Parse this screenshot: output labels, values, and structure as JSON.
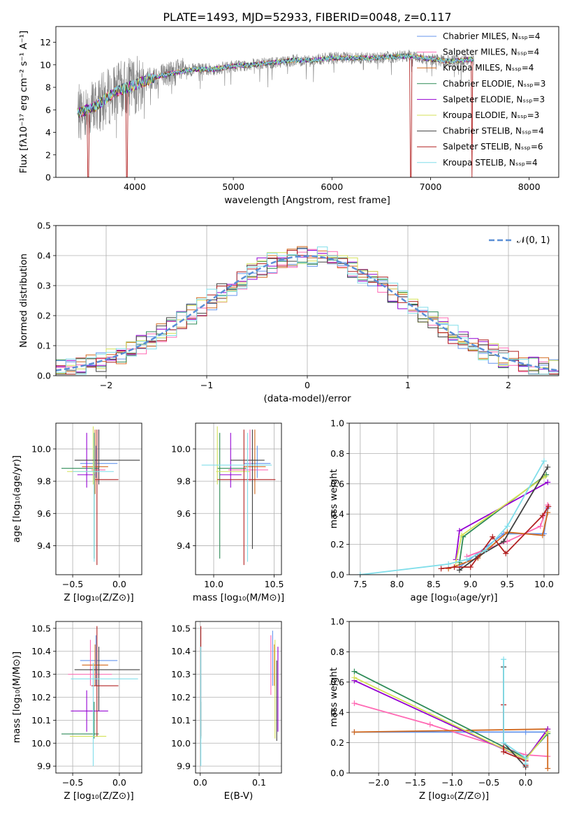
{
  "title": "PLATE=1493, MJD=52933, FIBERID=0048, z=0.117",
  "colors": {
    "ssp": [
      "#6495ed",
      "#ff69b4",
      "#d2691e",
      "#2e8b57",
      "#9400d3",
      "#d4e157",
      "#404040",
      "#b22222",
      "#80deea"
    ],
    "spectrum": "#808080",
    "gauss": "#5b8fd6",
    "grid": "#b0b0b0"
  },
  "chart_data": [
    {
      "id": "spectrum",
      "type": "line",
      "xlabel": "wavelength [Angstrom, rest frame]",
      "ylabel": "Flux [fλ10⁻¹⁷ erg cm⁻² s⁻¹ A⁻¹]",
      "xlim": [
        3200,
        8300
      ],
      "ylim": [
        0,
        13.4
      ],
      "xticks": [
        4000,
        5000,
        6000,
        7000,
        8000
      ],
      "yticks": [
        0,
        2,
        4,
        6,
        8,
        10,
        12
      ],
      "grid": false,
      "legend_position": "top-right",
      "legend": [
        "Chabrier MILES, Nₛₛₚ=4",
        "Salpeter MILES, Nₛₛₚ=4",
        "Kroupa MILES, Nₛₛₚ=4",
        "Chabrier ELODIE, Nₛₛₚ=3",
        "Salpeter ELODIE, Nₛₛₚ=3",
        "Kroupa ELODIE, Nₛₛₚ=3",
        "Chabrier STELIB, Nₛₛₚ=4",
        "Salpeter STELIB, Nₛₛₚ=6",
        "Kroupa STELIB, Nₛₛₚ=4"
      ],
      "continuum": [
        [
          3400,
          5.6
        ],
        [
          3600,
          6.3
        ],
        [
          3800,
          7.6
        ],
        [
          4000,
          8.2
        ],
        [
          4200,
          8.9
        ],
        [
          4400,
          9.3
        ],
        [
          4600,
          9.6
        ],
        [
          4800,
          9.6
        ],
        [
          5000,
          9.9
        ],
        [
          5200,
          10.0
        ],
        [
          5400,
          10.2
        ],
        [
          5600,
          10.4
        ],
        [
          5800,
          10.4
        ],
        [
          6000,
          10.6
        ],
        [
          6200,
          10.6
        ],
        [
          6400,
          10.6
        ],
        [
          6600,
          10.7
        ],
        [
          6800,
          10.8
        ],
        [
          7000,
          10.5
        ],
        [
          7200,
          10.3
        ],
        [
          7400,
          10.5
        ]
      ],
      "data_range": [
        3420,
        7440
      ],
      "model_drops": [
        3530,
        3920,
        6800,
        7420
      ]
    },
    {
      "id": "residual-hist",
      "type": "line",
      "xlabel": "(data-model)/error",
      "ylabel": "Normed distribution",
      "xlim": [
        -2.5,
        2.5
      ],
      "ylim": [
        0,
        0.5
      ],
      "xticks": [
        -2,
        -1,
        0,
        1,
        2
      ],
      "xtick_labels": [
        "−2",
        "−1",
        "0",
        "1",
        "2"
      ],
      "yticks": [
        0,
        0.1,
        0.2,
        0.3,
        0.4,
        0.5
      ],
      "ytick_labels": [
        "0.0",
        "0.1",
        "0.2",
        "0.3",
        "0.4",
        "0.5"
      ],
      "grid": true,
      "legend_position": "top-right",
      "legend": [
        "𝒩(0, 1)"
      ],
      "gauss": {
        "mu": 0,
        "sigma": 1
      }
    },
    {
      "id": "age-vs-z",
      "type": "scatter",
      "xlabel": "Z [log₁₀(Z/Z⊙)]",
      "ylabel": "age  [log₁₀(age/yr)]",
      "xlim": [
        -0.68,
        0.24
      ],
      "ylim": [
        9.22,
        10.16
      ],
      "xticks": [
        -0.5,
        0.0
      ],
      "xtick_labels": [
        "−0.5",
        "0.0"
      ],
      "yticks": [
        9.4,
        9.6,
        9.8,
        10.0
      ],
      "ytick_labels": [
        "9.4",
        "9.6",
        "9.8",
        "10.0"
      ],
      "grid": true,
      "points": [
        {
          "x": -0.25,
          "xe": [
            -0.42,
            -0.02
          ],
          "y": 9.91,
          "ye": [
            9.82,
            10.02
          ]
        },
        {
          "x": -0.22,
          "xe": [
            -0.3,
            -0.15
          ],
          "y": 9.87,
          "ye": [
            9.8,
            10.12
          ]
        },
        {
          "x": -0.26,
          "xe": [
            -0.4,
            -0.12
          ],
          "y": 9.89,
          "ye": [
            9.72,
            10.12
          ]
        },
        {
          "x": -0.27,
          "xe": [
            -0.62,
            -0.22
          ],
          "y": 9.88,
          "ye": [
            9.32,
            10.1
          ]
        },
        {
          "x": -0.35,
          "xe": [
            -0.45,
            -0.26
          ],
          "y": 9.84,
          "ye": [
            9.76,
            10.1
          ]
        },
        {
          "x": -0.28,
          "xe": [
            -0.56,
            -0.24
          ],
          "y": 9.86,
          "ye": [
            9.78,
            10.14
          ]
        },
        {
          "x": -0.22,
          "xe": [
            -0.48,
            0.22
          ],
          "y": 9.93,
          "ye": [
            9.78,
            10.12
          ]
        },
        {
          "x": -0.24,
          "xe": [
            -0.26,
            -0.01
          ],
          "y": 9.81,
          "ye": [
            9.28,
            10.12
          ]
        },
        {
          "x": -0.27,
          "xe": [
            -0.5,
            -0.06
          ],
          "y": 9.86,
          "ye": [
            9.3,
            10.1
          ]
        }
      ]
    },
    {
      "id": "age-vs-mass",
      "type": "scatter",
      "xlabel": "mass [log₁₀(M/M⊙)]",
      "ylabel": "",
      "xlim": [
        9.85,
        10.56
      ],
      "ylim": [
        9.22,
        10.16
      ],
      "xticks": [
        10.0,
        10.5
      ],
      "xtick_labels": [
        "10.0",
        "10.5"
      ],
      "yticks": [
        9.4,
        9.6,
        9.8,
        10.0
      ],
      "ytick_labels": [
        "9.4",
        "9.6",
        "9.8",
        "10.0"
      ],
      "grid": true,
      "points": [
        {
          "x": 10.36,
          "xe": [
            10.25,
            10.47
          ],
          "y": 9.91,
          "ye": [
            9.82,
            10.02
          ]
        },
        {
          "x": 10.3,
          "xe": [
            10.12,
            10.45
          ],
          "y": 9.87,
          "ye": [
            9.8,
            10.12
          ]
        },
        {
          "x": 10.34,
          "xe": [
            10.25,
            10.43
          ],
          "y": 9.89,
          "ye": [
            9.72,
            10.12
          ]
        },
        {
          "x": 10.05,
          "xe": [
            10.03,
            10.27
          ],
          "y": 9.88,
          "ye": [
            9.32,
            10.1
          ]
        },
        {
          "x": 10.14,
          "xe": [
            10.05,
            10.23
          ],
          "y": 9.84,
          "ye": [
            9.76,
            10.1
          ]
        },
        {
          "x": 10.03,
          "xe": [
            10.02,
            10.3
          ],
          "y": 9.86,
          "ye": [
            9.78,
            10.14
          ]
        },
        {
          "x": 10.32,
          "xe": [
            10.14,
            10.42
          ],
          "y": 9.93,
          "ye": [
            9.38,
            10.12
          ]
        },
        {
          "x": 10.25,
          "xe": [
            10.03,
            10.51
          ],
          "y": 9.81,
          "ye": [
            9.28,
            10.12
          ]
        },
        {
          "x": 10.28,
          "xe": [
            9.9,
            10.48
          ],
          "y": 9.9,
          "ye": [
            9.3,
            10.1
          ]
        }
      ]
    },
    {
      "id": "weight-vs-age",
      "type": "line",
      "xlabel": "age  [log₁₀(age/yr)]",
      "ylabel": "mass weight",
      "xlim": [
        7.35,
        10.2
      ],
      "ylim": [
        0,
        1.0
      ],
      "xticks": [
        7.5,
        8.0,
        8.5,
        9.0,
        9.5,
        10.0
      ],
      "xtick_labels": [
        "7.5",
        "8.0",
        "8.5",
        "9.0",
        "9.5",
        "10.0"
      ],
      "yticks": [
        0,
        0.2,
        0.4,
        0.6,
        0.8,
        1.0
      ],
      "ytick_labels": [
        "0.0",
        "0.2",
        "0.4",
        "0.6",
        "0.8",
        "1.0"
      ],
      "grid": true,
      "series": [
        {
          "x": [
            8.85,
            9.45,
            10.0,
            10.05
          ],
          "y": [
            0.05,
            0.27,
            0.27,
            0.44
          ]
        },
        {
          "x": [
            8.95,
            9.5,
            9.95,
            10.05
          ],
          "y": [
            0.12,
            0.22,
            0.32,
            0.46
          ]
        },
        {
          "x": [
            8.7,
            9.1,
            9.5,
            9.98,
            10.05
          ],
          "y": [
            0.04,
            0.11,
            0.28,
            0.26,
            0.41
          ]
        },
        {
          "x": [
            8.85,
            8.9,
            10.03
          ],
          "y": [
            0.08,
            0.25,
            0.66
          ]
        },
        {
          "x": [
            8.8,
            8.85,
            10.05
          ],
          "y": [
            0.1,
            0.29,
            0.61
          ]
        },
        {
          "x": [
            8.8,
            8.88,
            10.02
          ],
          "y": [
            0.08,
            0.26,
            0.65
          ]
        },
        {
          "x": [
            8.85,
            9.1,
            9.45,
            10.05
          ],
          "y": [
            0.03,
            0.12,
            0.22,
            0.71
          ]
        },
        {
          "x": [
            8.6,
            8.78,
            9.0,
            9.3,
            9.48,
            9.98,
            10.06
          ],
          "y": [
            0.04,
            0.05,
            0.05,
            0.25,
            0.14,
            0.39,
            0.45
          ]
        },
        {
          "x": [
            7.5,
            8.7,
            8.95,
            9.2,
            9.5,
            10.0
          ],
          "y": [
            0.0,
            0.07,
            0.1,
            0.16,
            0.32,
            0.75
          ]
        }
      ]
    },
    {
      "id": "mass-vs-z",
      "type": "scatter",
      "xlabel": "Z [log₁₀(Z/Z⊙)]",
      "ylabel": "mass [log₁₀(M/M⊙)]",
      "xlim": [
        -0.68,
        0.24
      ],
      "ylim": [
        9.87,
        10.53
      ],
      "xticks": [
        -0.5,
        0.0
      ],
      "xtick_labels": [
        "−0.5",
        "0.0"
      ],
      "yticks": [
        9.9,
        10.0,
        10.1,
        10.2,
        10.3,
        10.4,
        10.5
      ],
      "ytick_labels": [
        "9.9",
        "10.0",
        "10.1",
        "10.2",
        "10.3",
        "10.4",
        "10.5"
      ],
      "grid": true,
      "points": [
        {
          "x": -0.25,
          "xe": [
            -0.42,
            -0.02
          ],
          "y": 10.36,
          "ye": [
            10.25,
            10.47
          ]
        },
        {
          "x": -0.31,
          "xe": [
            -0.55,
            -0.08
          ],
          "y": 10.3,
          "ye": [
            10.25,
            10.45
          ]
        },
        {
          "x": -0.26,
          "xe": [
            -0.4,
            -0.12
          ],
          "y": 10.34,
          "ye": [
            10.25,
            10.43
          ]
        },
        {
          "x": -0.27,
          "xe": [
            -0.62,
            -0.22
          ],
          "y": 10.04,
          "ye": [
            10.02,
            10.18
          ]
        },
        {
          "x": -0.35,
          "xe": [
            -0.52,
            -0.12
          ],
          "y": 10.14,
          "ye": [
            10.05,
            10.23
          ]
        },
        {
          "x": -0.28,
          "xe": [
            -0.53,
            -0.14
          ],
          "y": 10.03,
          "ye": [
            10.02,
            10.1
          ]
        },
        {
          "x": -0.22,
          "xe": [
            -0.48,
            0.22
          ],
          "y": 10.32,
          "ye": [
            10.14,
            10.42
          ]
        },
        {
          "x": -0.24,
          "xe": [
            -0.3,
            -0.01
          ],
          "y": 10.25,
          "ye": [
            10.03,
            10.51
          ]
        },
        {
          "x": -0.28,
          "xe": [
            -0.52,
            0.2
          ],
          "y": 10.28,
          "ye": [
            9.9,
            10.35
          ]
        }
      ]
    },
    {
      "id": "mass-vs-ebv",
      "type": "scatter",
      "xlabel": "E(B-V)",
      "ylabel": "",
      "xlim": [
        -0.008,
        0.138
      ],
      "ylim": [
        9.87,
        10.53
      ],
      "xticks": [
        0.0,
        0.1
      ],
      "xtick_labels": [
        "0.0",
        "0.1"
      ],
      "yticks": [
        9.9,
        10.0,
        10.1,
        10.2,
        10.3,
        10.4,
        10.5
      ],
      "ytick_labels": [
        "9.9",
        "10.0",
        "10.1",
        "10.2",
        "10.3",
        "10.4",
        "10.5"
      ],
      "grid": true,
      "points": [
        {
          "x": 0.123,
          "xe": [
            0.123,
            0.123
          ],
          "y": 10.36,
          "ye": [
            10.25,
            10.49
          ]
        },
        {
          "x": 0.12,
          "xe": [
            0.12,
            0.12
          ],
          "y": 10.3,
          "ye": [
            10.21,
            10.47
          ]
        },
        {
          "x": 0.126,
          "xe": [
            0.126,
            0.126
          ],
          "y": 10.34,
          "ye": [
            10.25,
            10.43
          ]
        },
        {
          "x": 0.001,
          "xe": [
            0.001,
            0.001
          ],
          "y": 10.04,
          "ye": [
            10.02,
            10.18
          ]
        },
        {
          "x": 0.132,
          "xe": [
            0.132,
            0.132
          ],
          "y": 10.14,
          "ye": [
            10.05,
            10.42
          ]
        },
        {
          "x": 0.127,
          "xe": [
            0.127,
            0.127
          ],
          "y": 10.03,
          "ye": [
            10.02,
            10.45
          ]
        },
        {
          "x": 0.13,
          "xe": [
            0.13,
            0.13
          ],
          "y": 10.32,
          "ye": [
            10.01,
            10.36
          ]
        },
        {
          "x": 0.001,
          "xe": [
            0.001,
            0.001
          ],
          "y": 10.25,
          "ye": [
            10.03,
            10.51
          ]
        },
        {
          "x": 0.001,
          "xe": [
            0.001,
            0.001
          ],
          "y": 10.28,
          "ye": [
            9.9,
            10.42
          ]
        }
      ]
    },
    {
      "id": "weight-vs-z",
      "type": "line",
      "xlabel": "Z [log₁₀(Z/Z⊙)]",
      "ylabel": "mass weight",
      "xlim": [
        -2.4,
        0.45
      ],
      "ylim": [
        0,
        1.0
      ],
      "xticks": [
        -2.0,
        -1.5,
        -1.0,
        -0.5,
        0.0
      ],
      "xtick_labels": [
        "−2.0",
        "−1.5",
        "−1.0",
        "−0.5",
        "0.0"
      ],
      "yticks": [
        0,
        0.2,
        0.4,
        0.6,
        0.8,
        1.0
      ],
      "ytick_labels": [
        "0.0",
        "0.2",
        "0.4",
        "0.6",
        "0.8",
        "1.0"
      ],
      "grid": true,
      "series": [
        {
          "x": [
            -2.33,
            0.0,
            0.3
          ],
          "y": [
            0.27,
            0.27,
            0.27
          ]
        },
        {
          "x": [
            -2.33,
            -1.3,
            0.0,
            0.3
          ],
          "y": [
            0.46,
            0.32,
            0.12,
            0.11
          ]
        },
        {
          "x": [
            -2.33,
            0.3,
            0.3
          ],
          "y": [
            0.27,
            0.29,
            0.03
          ]
        },
        {
          "x": [
            -2.33,
            0.0,
            0.3
          ],
          "y": [
            0.67,
            0.1,
            0.26
          ]
        },
        {
          "x": [
            -2.33,
            0.0,
            0.3
          ],
          "y": [
            0.61,
            0.09,
            0.29
          ]
        },
        {
          "x": [
            -2.33,
            0.0,
            0.3
          ],
          "y": [
            0.63,
            0.09,
            0.27
          ]
        },
        {
          "x": [
            -0.3,
            -0.3,
            0.0
          ],
          "y": [
            0.7,
            0.2,
            0.04
          ]
        },
        {
          "x": [
            -0.3,
            -0.3,
            0.0,
            0.0
          ],
          "y": [
            0.45,
            0.14,
            0.08,
            0.05
          ]
        },
        {
          "x": [
            -0.3,
            -0.3,
            0.0,
            0.0
          ],
          "y": [
            0.75,
            0.2,
            0.1,
            0.06
          ]
        }
      ]
    }
  ]
}
